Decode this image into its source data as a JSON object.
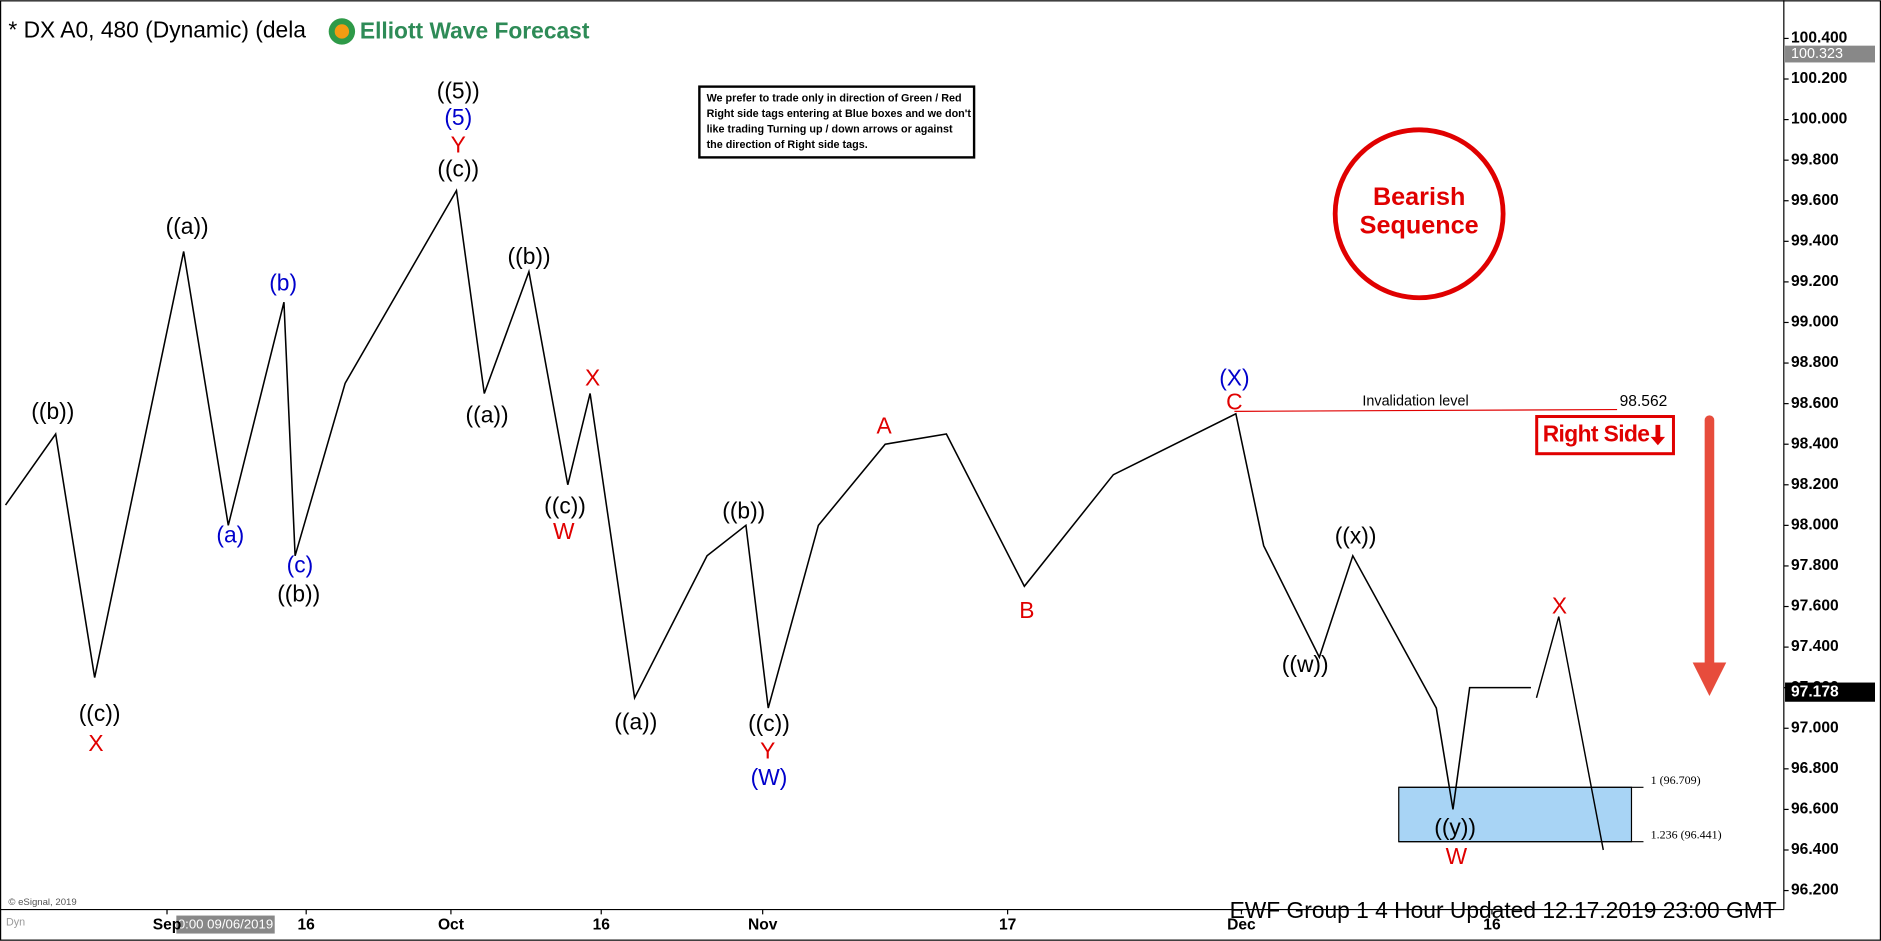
{
  "chart_data": {
    "type": "line",
    "title": "* DX A0, 480 (Dynamic) (dela",
    "logo": "Elliott Wave Forecast",
    "note": [
      "We prefer to trade only in direction of Green / Red",
      "Right side tags entering at Blue boxes and we don't",
      "like trading Turning up / down arrows or against",
      "the direction of Right side tags."
    ],
    "badge": [
      "Bearish",
      "Sequence"
    ],
    "right_side": "Right Side",
    "invalidation": {
      "text": "Invalidation level",
      "value": 98.562
    },
    "fib_levels": [
      {
        "value": 96.709,
        "label": "1 (96.709)"
      },
      {
        "value": 96.441,
        "label": "1.236 (96.441)"
      }
    ],
    "last_price": {
      "value": 97.178,
      "label": "97.178"
    },
    "top_price": {
      "value": 100.323,
      "label": "100.323"
    },
    "footer": "EWF Group 1 4 Hour  Updated 12.17.2019 23:00 GMT",
    "copyright": "© eSignal, 2019",
    "cursor_date": "0:00 09/06/2019",
    "corner": "Dyn",
    "grid": false,
    "xlim": [
      0,
      320
    ],
    "ylim": [
      96.0,
      100.6
    ],
    "xticks": [
      {
        "value": 30,
        "label": "Sep"
      },
      {
        "value": 55,
        "label": "16"
      },
      {
        "value": 81,
        "label": "Oct"
      },
      {
        "value": 108,
        "label": "16"
      },
      {
        "value": 137,
        "label": "Nov"
      },
      {
        "value": 181,
        "label": "17"
      },
      {
        "value": 223,
        "label": "Dec"
      },
      {
        "value": 268,
        "label": "16"
      }
    ],
    "yticks": [
      {
        "value": 96.2,
        "label": "96.200"
      },
      {
        "value": 96.4,
        "label": "96.400"
      },
      {
        "value": 96.6,
        "label": "96.600"
      },
      {
        "value": 96.8,
        "label": "96.800"
      },
      {
        "value": 97.0,
        "label": "97.000"
      },
      {
        "value": 97.2,
        "label": "97.200"
      },
      {
        "value": 97.4,
        "label": "97.400"
      },
      {
        "value": 97.6,
        "label": "97.600"
      },
      {
        "value": 97.8,
        "label": "97.800"
      },
      {
        "value": 98.0,
        "label": "98.000"
      },
      {
        "value": 98.2,
        "label": "98.200"
      },
      {
        "value": 98.4,
        "label": "98.400"
      },
      {
        "value": 98.6,
        "label": "98.600"
      },
      {
        "value": 98.8,
        "label": "98.800"
      },
      {
        "value": 99.0,
        "label": "99.000"
      },
      {
        "value": 99.2,
        "label": "99.200"
      },
      {
        "value": 99.4,
        "label": "99.400"
      },
      {
        "value": 99.6,
        "label": "99.600"
      },
      {
        "value": 99.8,
        "label": "99.800"
      },
      {
        "value": 100.0,
        "label": "100.000"
      },
      {
        "value": 100.2,
        "label": "100.200"
      },
      {
        "value": 100.4,
        "label": "100.400"
      }
    ],
    "series": [
      {
        "color": "#000000",
        "x": [
          1,
          10,
          17,
          33,
          41,
          51,
          53,
          62,
          82,
          87,
          95,
          102,
          106,
          114,
          127,
          134,
          138,
          147,
          159,
          170,
          184,
          200,
          222,
          227,
          237,
          243,
          258,
          261,
          264,
          275
        ],
        "values": [
          98.1,
          98.45,
          97.25,
          99.35,
          98.0,
          99.1,
          97.85,
          98.7,
          99.65,
          98.65,
          99.25,
          98.2,
          98.65,
          97.15,
          97.85,
          98.0,
          97.1,
          98.0,
          98.4,
          98.45,
          97.7,
          98.25,
          98.55,
          97.9,
          97.35,
          97.85,
          97.1,
          96.6,
          97.2,
          97.2
        ]
      },
      {
        "color": "#000000",
        "x": [
          276,
          280,
          288
        ],
        "values": [
          97.15,
          97.55,
          96.4
        ]
      }
    ],
    "annotations": [
      {
        "text": "((b))",
        "color": "#000000"
      },
      {
        "text": "((c))",
        "color": "#000000"
      },
      {
        "text": "X",
        "color": "#e00000"
      },
      {
        "text": "((a))",
        "color": "#000000"
      },
      {
        "text": "(b)",
        "color": "#0000cc"
      },
      {
        "text": "(a)",
        "color": "#0000cc"
      },
      {
        "text": "(c)",
        "color": "#0000cc"
      },
      {
        "text": "((b))",
        "color": "#000000"
      },
      {
        "text": "((5))",
        "color": "#000000"
      },
      {
        "text": "(5)",
        "color": "#0000cc"
      },
      {
        "text": "Y",
        "color": "#e00000"
      },
      {
        "text": "((c))",
        "color": "#000000"
      },
      {
        "text": "((b))",
        "color": "#000000"
      },
      {
        "text": "((a))",
        "color": "#000000"
      },
      {
        "text": "X",
        "color": "#e00000"
      },
      {
        "text": "((c))",
        "color": "#000000"
      },
      {
        "text": "W",
        "color": "#e00000"
      },
      {
        "text": "((a))",
        "color": "#000000"
      },
      {
        "text": "((b))",
        "color": "#000000"
      },
      {
        "text": "((c))",
        "color": "#000000"
      },
      {
        "text": "Y",
        "color": "#e00000"
      },
      {
        "text": "(W)",
        "color": "#0000cc"
      },
      {
        "text": "A",
        "color": "#e00000"
      },
      {
        "text": "B",
        "color": "#e00000"
      },
      {
        "text": "(X)",
        "color": "#0000cc"
      },
      {
        "text": "C",
        "color": "#e00000"
      },
      {
        "text": "((x))",
        "color": "#000000"
      },
      {
        "text": "((w))",
        "color": "#000000"
      },
      {
        "text": "((y))",
        "color": "#000000"
      },
      {
        "text": "W",
        "color": "#e00000"
      },
      {
        "text": "X",
        "color": "#e00000"
      }
    ]
  }
}
